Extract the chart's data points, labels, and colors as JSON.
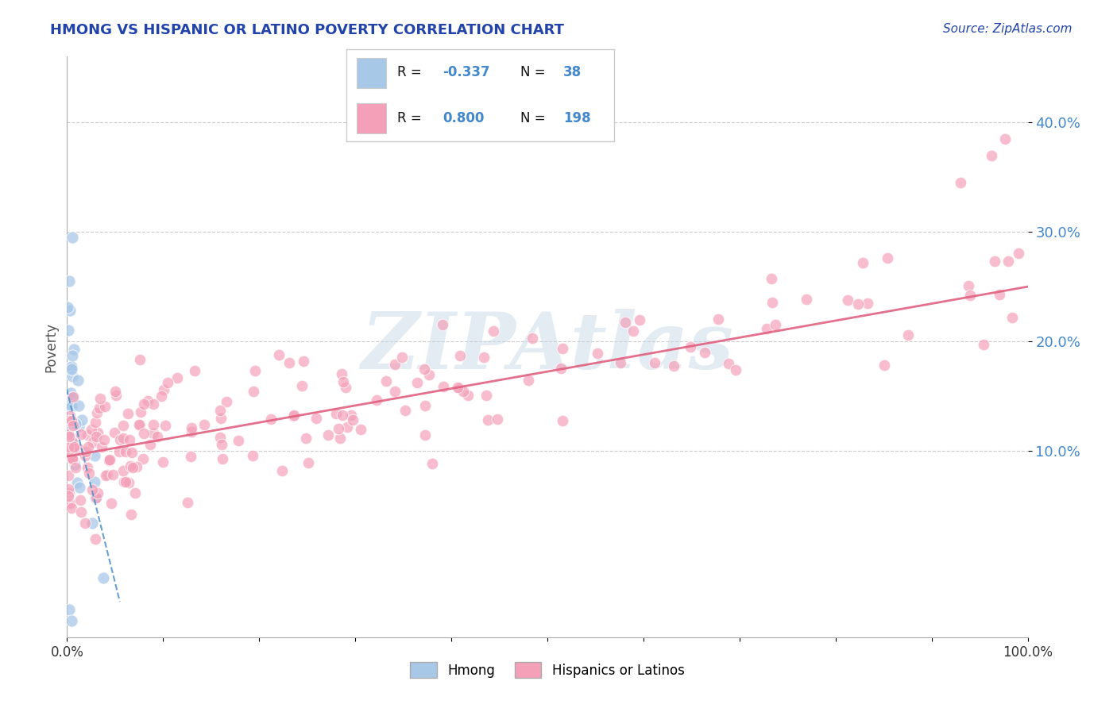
{
  "title": "HMONG VS HISPANIC OR LATINO POVERTY CORRELATION CHART",
  "source": "Source: ZipAtlas.com",
  "ylabel": "Poverty",
  "xlim": [
    0,
    1.0
  ],
  "ylim": [
    -0.07,
    0.46
  ],
  "xticks": [
    0.0,
    0.1,
    0.2,
    0.3,
    0.4,
    0.5,
    0.6,
    0.7,
    0.8,
    0.9,
    1.0
  ],
  "xticklabels": [
    "0.0%",
    "",
    "",
    "",
    "",
    "",
    "",
    "",
    "",
    "",
    "100.0%"
  ],
  "ytick_positions": [
    0.1,
    0.2,
    0.3,
    0.4
  ],
  "ytick_labels": [
    "10.0%",
    "20.0%",
    "30.0%",
    "40.0%"
  ],
  "hmong_color": "#a8c8e8",
  "hispanic_color": "#f4a0b8",
  "blue_line_color": "#5090c8",
  "pink_line_color": "#e06080",
  "watermark_color": "#c8d8e8",
  "background_color": "#ffffff",
  "title_color": "#2244aa",
  "source_color": "#2244aa",
  "ytick_color": "#4488cc",
  "grid_color": "#cccccc",
  "legend_blue_fill": "#a8c8e8",
  "legend_pink_fill": "#f4a0b8",
  "legend_border": "#cccccc"
}
